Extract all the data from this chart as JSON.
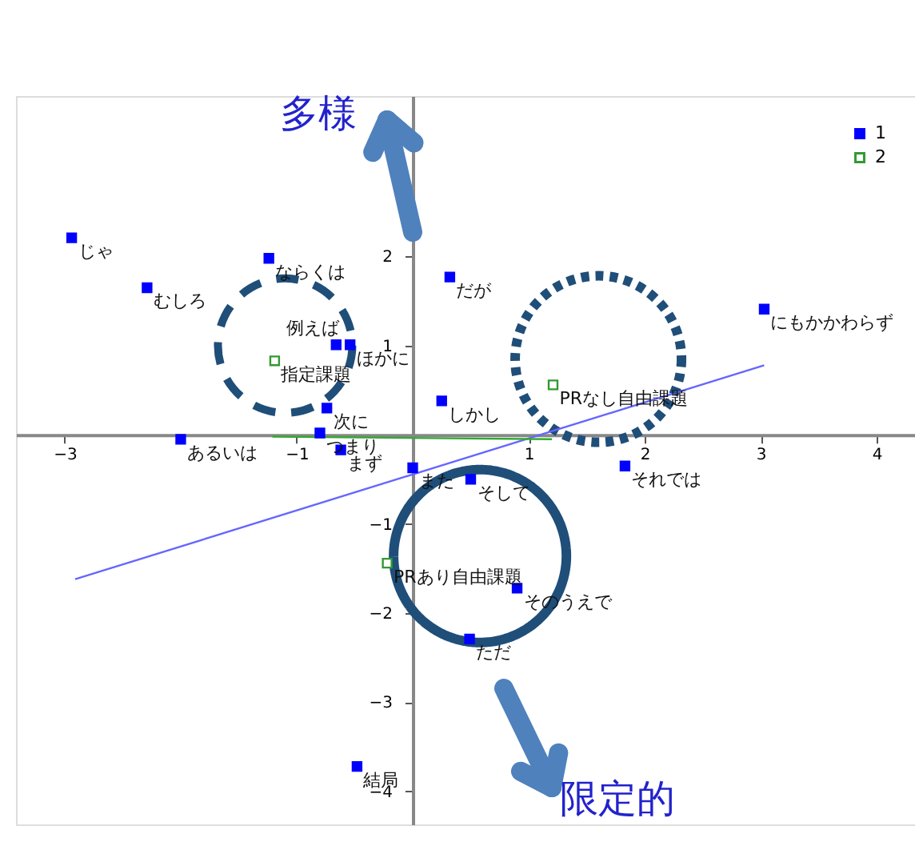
{
  "chart_data": {
    "type": "scatter",
    "xlim": [
      -3.42,
      4.33
    ],
    "ylim": [
      -4.37,
      3.8
    ],
    "xticks": [
      -3,
      {
        "value": -2,
        "label": null
      },
      -1,
      {
        "value": 0,
        "label": null
      },
      1,
      2,
      3,
      4
    ],
    "yticks": [
      -4,
      -3,
      -2,
      -1,
      1,
      2
    ],
    "grid": false,
    "legend": "top right",
    "marker": "square",
    "annotations": [
      "多様",
      "限定的"
    ],
    "series": [
      {
        "name": "1",
        "color": "#0000ff",
        "x": [
          -2.94,
          -1.24,
          -2.29,
          -0.66,
          -0.54,
          -0.74,
          -0.8,
          -0.62,
          -2.0,
          0.0,
          0.5,
          0.32,
          0.25,
          1.83,
          3.03,
          0.9,
          0.49,
          -0.48
        ],
        "values": [
          2.21,
          1.98,
          1.65,
          1.01,
          1.01,
          0.3,
          0.02,
          -0.17,
          -0.05,
          -0.37,
          -0.5,
          1.77,
          0.38,
          -0.35,
          1.41,
          -1.72,
          -2.29,
          -3.72
        ],
        "value_labels": [
          "じゃ",
          "ならくは",
          "むしろ",
          "例えば",
          "ほかに",
          "次に",
          "つまり",
          "まず",
          "あるいは",
          "また",
          "そして",
          "だが",
          "しかし",
          "それでは",
          "にもかかわらず",
          "そのうえで",
          "ただ",
          "結局"
        ]
      },
      {
        "name": "2",
        "color": "#339933",
        "x": [
          -1.19,
          1.21,
          -0.22
        ],
        "values": [
          0.83,
          0.56,
          -1.44
        ],
        "value_labels": [
          "指定課題",
          "PRなし自由課題",
          "PRあり自由課題"
        ]
      },
      {
        "type": "line",
        "marker": "none",
        "color": "#6666ff",
        "x": [
          -2.91,
          3.03
        ],
        "values": [
          -1.62,
          0.78
        ]
      },
      {
        "type": "line",
        "marker": "none",
        "color": "#33aa33",
        "x": [
          -1.21,
          1.2
        ],
        "values": [
          -0.02,
          -0.05
        ]
      }
    ]
  }
}
